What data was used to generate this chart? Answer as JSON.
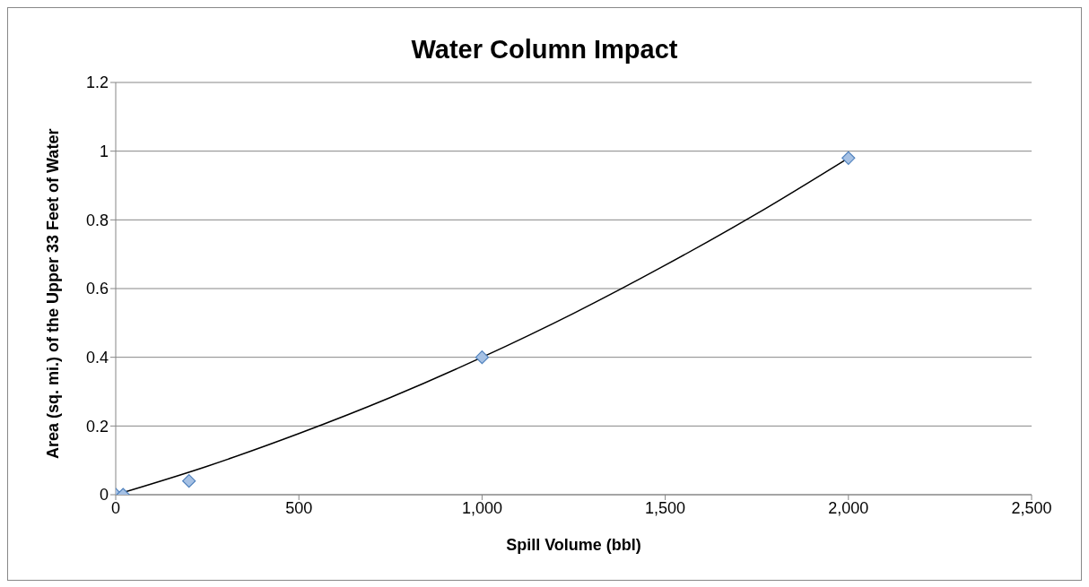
{
  "chart_data": {
    "type": "scatter",
    "title": "Water Column Impact",
    "xlabel": "Spill Volume (bbl)",
    "ylabel": "Area (sq. mi.) of the Upper 33 Feet of Water",
    "xlim": [
      0,
      2500
    ],
    "xticks": [
      0,
      500,
      {
        "value": 1000,
        "label": "1,000"
      },
      {
        "value": 1500,
        "label": "1,500"
      },
      {
        "value": 2000,
        "label": "2,000"
      },
      {
        "value": 2500,
        "label": "2,500"
      }
    ],
    "ylim": [
      0,
      1.2
    ],
    "yticks": [
      0,
      0.2,
      0.4,
      0.6,
      0.8,
      1,
      1.2
    ],
    "grid": "y",
    "legend": false,
    "series": [
      {
        "color": "#a6c1e4",
        "marker": "diamond",
        "x": [
          0,
          20,
          200,
          1000,
          2000
        ],
        "values": [
          0,
          0,
          0.04,
          0.4,
          0.98
        ]
      },
      {
        "type": "line",
        "color": "#000000",
        "marker": "none",
        "line_style": "solid",
        "x": [
          0,
          250,
          500,
          750,
          1000,
          1250,
          1500,
          1750,
          2000
        ],
        "values": [
          0,
          0.083,
          0.178,
          0.283,
          0.4,
          0.528,
          0.668,
          0.818,
          0.98
        ]
      }
    ]
  }
}
